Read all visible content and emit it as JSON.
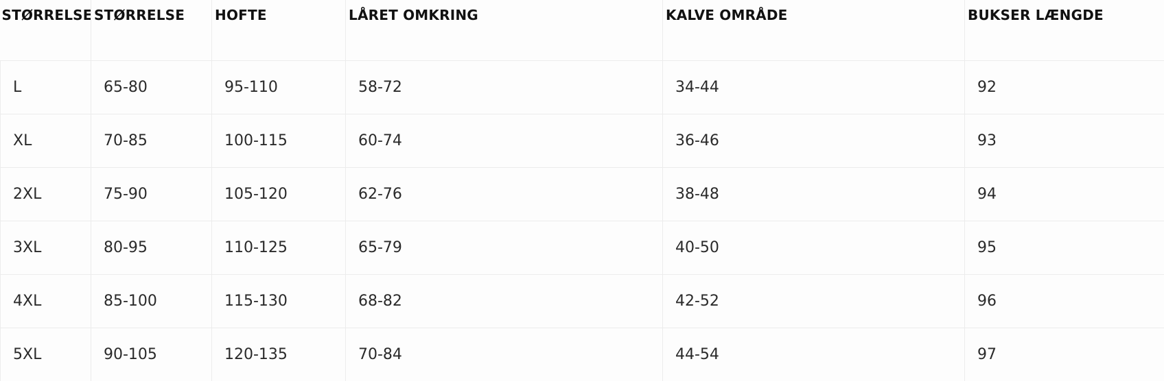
{
  "size_table": {
    "headers": [
      "STØRRELSE",
      "STØRRELSE",
      "HOFTE",
      "LÅRET OMKRING",
      "KALVE OMRÅDE",
      "BUKSER LÆNGDE"
    ],
    "rows": [
      [
        "L",
        "65-80",
        "95-110",
        "58-72",
        "34-44",
        "92"
      ],
      [
        "XL",
        "70-85",
        "100-115",
        "60-74",
        "36-46",
        "93"
      ],
      [
        "2XL",
        "75-90",
        "105-120",
        "62-76",
        "38-48",
        "94"
      ],
      [
        "3XL",
        "80-95",
        "110-125",
        "65-79",
        "40-50",
        "95"
      ],
      [
        "4XL",
        "85-100",
        "115-130",
        "68-82",
        "42-52",
        "96"
      ],
      [
        "5XL",
        "90-105",
        "120-135",
        "70-84",
        "44-54",
        "97"
      ]
    ]
  }
}
